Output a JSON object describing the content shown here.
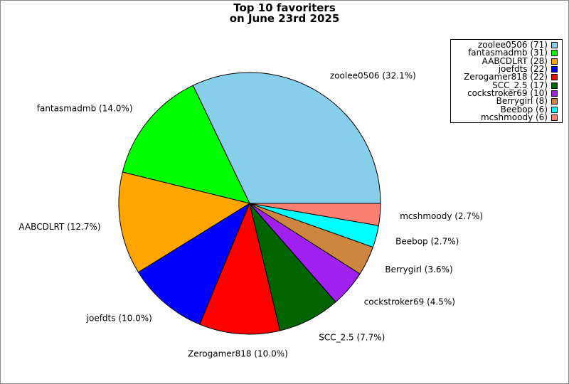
{
  "chart_data": {
    "type": "pie",
    "title_line1": "Top 10 favoriters",
    "title_line2": "on June 23rd 2025",
    "slices": [
      {
        "label": "zoolee0506",
        "value": 71,
        "percent": "32.1%",
        "color": "#87CEEB"
      },
      {
        "label": "fantasmadmb",
        "value": 31,
        "percent": "14.0%",
        "color": "#00FF00"
      },
      {
        "label": "AABCDLRT",
        "value": 28,
        "percent": "12.7%",
        "color": "#FFA500"
      },
      {
        "label": "joefdts",
        "value": 22,
        "percent": "10.0%",
        "color": "#0000FF"
      },
      {
        "label": "Zerogamer818",
        "value": 22,
        "percent": "10.0%",
        "color": "#FF0000"
      },
      {
        "label": "SCC_2.5",
        "value": 17,
        "percent": "7.7%",
        "color": "#006400"
      },
      {
        "label": "cockstroker69",
        "value": 10,
        "percent": "4.5%",
        "color": "#A020F0"
      },
      {
        "label": "Berrygirl",
        "value": 8,
        "percent": "3.6%",
        "color": "#CD853F"
      },
      {
        "label": "Beebop",
        "value": 6,
        "percent": "2.7%",
        "color": "#00FFFF"
      },
      {
        "label": "mcshmoody",
        "value": 6,
        "percent": "2.7%",
        "color": "#FA8072"
      }
    ],
    "legend_placement": "top-right"
  }
}
